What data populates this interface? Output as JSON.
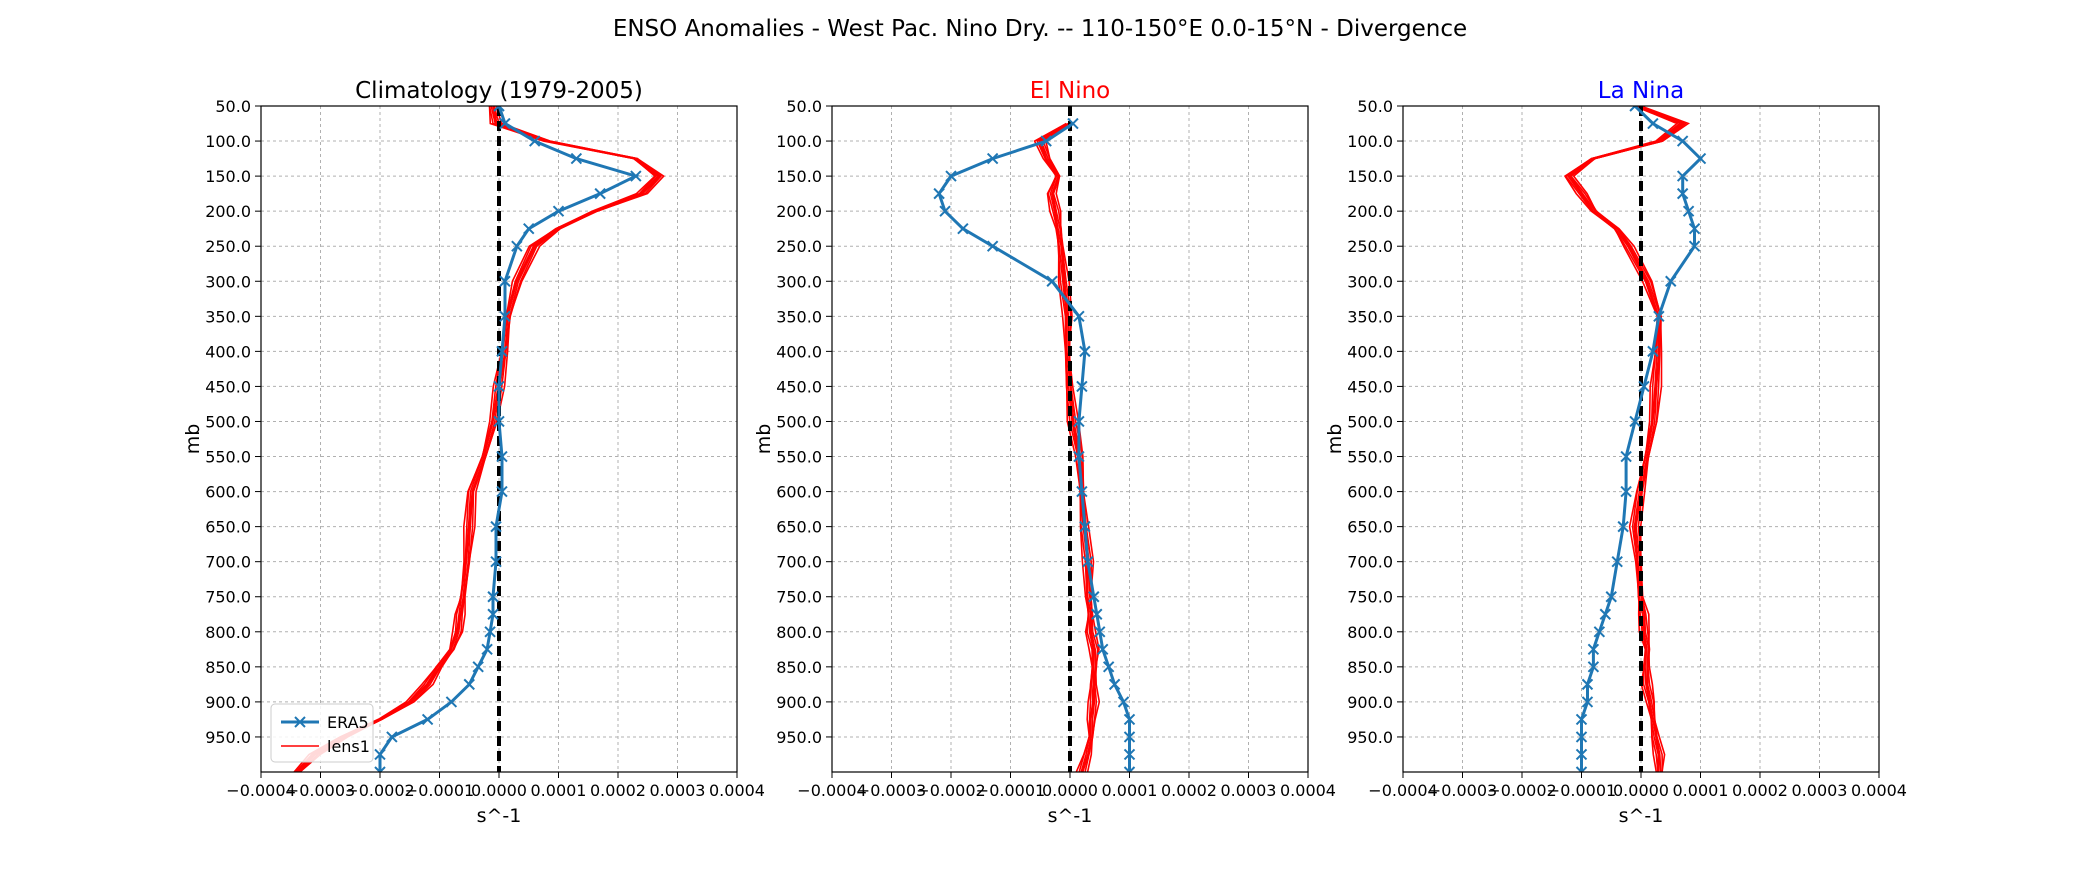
{
  "suptitle": "ENSO Anomalies - West Pac. Nino Dry. -- 110-150°E 0.0-15°N - Divergence",
  "colors": {
    "era5": "#1f77b4",
    "lens": "#ff0000",
    "zero_line": "#000000",
    "el_nino_title": "#ff0000",
    "la_nina_title": "#0000ff",
    "default_title": "#000000"
  },
  "legend": {
    "placement": "lower-left",
    "entries": [
      "ERA5",
      "lens1"
    ]
  },
  "chart_data": [
    {
      "type": "line",
      "title": "Climatology (1979-2005)",
      "title_color": "#000000",
      "xlabel": "s^-1",
      "ylabel": "mb",
      "xlim": [
        -0.0004,
        0.0004
      ],
      "ylim": [
        1000,
        50
      ],
      "x_ticks": [
        "−0.0004",
        "−0.0003",
        "−0.0002",
        "−0.0001",
        "0.0000",
        "0.0001",
        "0.0002",
        "0.0003",
        "0.0004"
      ],
      "y_ticks": [
        "50.0",
        "100.0",
        "150.0",
        "200.0",
        "250.0",
        "300.0",
        "350.0",
        "400.0",
        "450.0",
        "500.0",
        "550.0",
        "600.0",
        "650.0",
        "700.0",
        "750.0",
        "800.0",
        "850.0",
        "900.0",
        "950.0"
      ],
      "grid": true,
      "show_legend": true,
      "levels": [
        50,
        75,
        100,
        125,
        150,
        175,
        200,
        225,
        250,
        300,
        350,
        400,
        450,
        500,
        550,
        600,
        650,
        700,
        750,
        775,
        800,
        825,
        850,
        875,
        900,
        925,
        950,
        975,
        1000
      ],
      "series": [
        {
          "name": "ERA5",
          "values": [
            0.0,
            1e-05,
            6e-05,
            0.00013,
            0.00023,
            0.00017,
            0.0001,
            5e-05,
            3e-05,
            1e-05,
            1e-05,
            5e-06,
            0.0,
            0.0,
            5e-06,
            5e-06,
            -5e-06,
            -5e-06,
            -1e-05,
            -1e-05,
            -1.5e-05,
            -2e-05,
            -3.5e-05,
            -5e-05,
            -8e-05,
            -0.00012,
            -0.00018,
            -0.0002,
            -0.0002
          ]
        },
        {
          "name": "lens1",
          "values": [
            -1e-05,
            -5e-06,
            8e-05,
            0.00023,
            0.00027,
            0.00024,
            0.00016,
            0.0001,
            6e-05,
            3e-05,
            1.5e-05,
            1e-05,
            0.0,
            -1e-05,
            -2.5e-05,
            -4.5e-05,
            -5e-05,
            -5.5e-05,
            -6e-05,
            -6.5e-05,
            -7e-05,
            -8e-05,
            -0.0001,
            -0.00012,
            -0.00015,
            -0.0002,
            -0.00026,
            -0.00031,
            -0.00034
          ]
        }
      ]
    },
    {
      "type": "line",
      "title": "El Nino",
      "title_color": "#ff0000",
      "xlabel": "s^-1",
      "ylabel": "mb",
      "xlim": [
        -0.0004,
        0.0004
      ],
      "ylim": [
        1000,
        50
      ],
      "x_ticks": [
        "−0.0004",
        "−0.0003",
        "−0.0002",
        "−0.0001",
        "0.0000",
        "0.0001",
        "0.0002",
        "0.0003",
        "0.0004"
      ],
      "y_ticks": [
        "50.0",
        "100.0",
        "150.0",
        "200.0",
        "250.0",
        "300.0",
        "350.0",
        "400.0",
        "450.0",
        "500.0",
        "550.0",
        "600.0",
        "650.0",
        "700.0",
        "750.0",
        "800.0",
        "850.0",
        "900.0",
        "950.0"
      ],
      "grid": true,
      "show_legend": false,
      "levels": [
        75,
        100,
        125,
        150,
        175,
        200,
        225,
        250,
        300,
        350,
        400,
        450,
        500,
        550,
        600,
        650,
        700,
        750,
        775,
        800,
        825,
        850,
        875,
        900,
        925,
        950,
        975,
        1000
      ],
      "series": [
        {
          "name": "ERA5",
          "values": [
            5e-06,
            -4e-05,
            -0.00013,
            -0.0002,
            -0.00022,
            -0.00021,
            -0.00018,
            -0.00013,
            -3e-05,
            1.5e-05,
            2.5e-05,
            2e-05,
            1.5e-05,
            1.5e-05,
            2e-05,
            2.5e-05,
            3e-05,
            4e-05,
            4.5e-05,
            5e-05,
            5.5e-05,
            6.5e-05,
            7.5e-05,
            9e-05,
            0.0001,
            0.0001,
            0.0001,
            0.0001
          ]
        },
        {
          "name": "lens1",
          "values": [
            0.0,
            -5e-05,
            -4e-05,
            -2e-05,
            -3e-05,
            -2.5e-05,
            -2e-05,
            -1.5e-05,
            -1e-05,
            -5e-06,
            -5e-06,
            0.0,
            5e-06,
            1.5e-05,
            2e-05,
            2.5e-05,
            3e-05,
            3e-05,
            3.5e-05,
            3.5e-05,
            4e-05,
            4e-05,
            4e-05,
            4e-05,
            3.5e-05,
            3.5e-05,
            3e-05,
            2e-05
          ]
        }
      ]
    },
    {
      "type": "line",
      "title": "La Nina",
      "title_color": "#0000ff",
      "xlabel": "s^-1",
      "ylabel": "mb",
      "xlim": [
        -0.0004,
        0.0004
      ],
      "ylim": [
        1000,
        50
      ],
      "x_ticks": [
        "−0.0004",
        "−0.0003",
        "−0.0002",
        "−0.0001",
        "0.0000",
        "0.0001",
        "0.0002",
        "0.0003",
        "0.0004"
      ],
      "y_ticks": [
        "50.0",
        "100.0",
        "150.0",
        "200.0",
        "250.0",
        "300.0",
        "350.0",
        "400.0",
        "450.0",
        "500.0",
        "550.0",
        "600.0",
        "650.0",
        "700.0",
        "750.0",
        "800.0",
        "850.0",
        "900.0",
        "950.0"
      ],
      "grid": true,
      "show_legend": false,
      "levels": [
        50,
        75,
        100,
        125,
        150,
        175,
        200,
        225,
        250,
        300,
        350,
        400,
        450,
        500,
        550,
        600,
        650,
        700,
        750,
        775,
        800,
        825,
        850,
        875,
        900,
        925,
        950,
        975,
        1000
      ],
      "series": [
        {
          "name": "ERA5",
          "values": [
            -1e-05,
            2e-05,
            7e-05,
            0.0001,
            7e-05,
            7e-05,
            8e-05,
            9e-05,
            9e-05,
            5e-05,
            3e-05,
            2e-05,
            5e-06,
            -1e-05,
            -2.5e-05,
            -2.5e-05,
            -3e-05,
            -4e-05,
            -5e-05,
            -6e-05,
            -7e-05,
            -8e-05,
            -8e-05,
            -9e-05,
            -9e-05,
            -0.0001,
            -0.0001,
            -0.0001,
            -0.0001
          ]
        },
        {
          "name": "lens1",
          "values": [
            -5e-06,
            7e-05,
            3e-05,
            -8e-05,
            -0.00012,
            -0.0001,
            -8e-05,
            -4e-05,
            -2e-05,
            1e-05,
            3e-05,
            3e-05,
            2.5e-05,
            2e-05,
            1e-05,
            0.0,
            -1e-05,
            -5e-06,
            0.0,
            5e-06,
            5e-06,
            1e-05,
            1e-05,
            1e-05,
            1.5e-05,
            2e-05,
            2.5e-05,
            3e-05,
            3e-05
          ]
        }
      ]
    }
  ]
}
